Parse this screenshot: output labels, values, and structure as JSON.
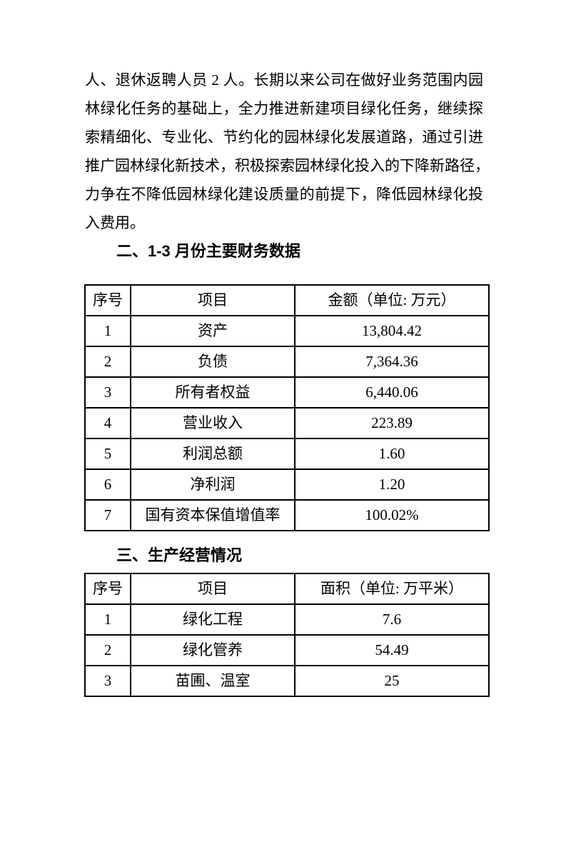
{
  "colors": {
    "text": "#000000",
    "background": "#ffffff",
    "table_border": "#000000"
  },
  "paragraph_lines": [
    "人、退休返聘人员 2 人。长期以来公司在做好业务范围内园",
    "林绿化任务的基础上，全力推进新建项目绿化任务，继续探",
    "索精细化、专业化、节约化的园林绿化发展道路，通过引进",
    "推广园林绿化新技术，积极探索园林绿化投入的下降新路径，",
    "力争在不降低园林绿化建设质量的前提下，降低园林绿化投",
    "入费用。"
  ],
  "section2": {
    "heading": "二、1-3 月份主要财务数据",
    "table": {
      "headers": [
        "序号",
        "项目",
        "金额（单位: 万元）"
      ],
      "rows": [
        {
          "no": "1",
          "item": "资产",
          "value": "13,804.42"
        },
        {
          "no": "2",
          "item": "负债",
          "value": "7,364.36"
        },
        {
          "no": "3",
          "item": "所有者权益",
          "value": "6,440.06"
        },
        {
          "no": "4",
          "item": "营业收入",
          "value": "223.89"
        },
        {
          "no": "5",
          "item": "利润总额",
          "value": "1.60"
        },
        {
          "no": "6",
          "item": "净利润",
          "value": "1.20"
        },
        {
          "no": "7",
          "item": "国有资本保值增值率",
          "value": "100.02%"
        }
      ]
    }
  },
  "section3": {
    "heading": "三、生产经营情况",
    "table": {
      "headers": [
        "序号",
        "项目",
        "面积（单位: 万平米）"
      ],
      "rows": [
        {
          "no": "1",
          "item": "绿化工程",
          "value": "7.6"
        },
        {
          "no": "2",
          "item": "绿化管养",
          "value": "54.49"
        },
        {
          "no": "3",
          "item": "苗圃、温室",
          "value": "25"
        }
      ]
    }
  }
}
